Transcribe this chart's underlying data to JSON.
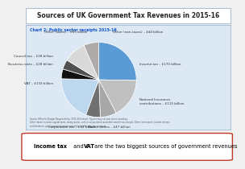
{
  "title": "Sources of UK Government Tax Revenues in 2015-16",
  "chart_title": "Chart 2: Public sector receipts 2015-16",
  "slices": [
    {
      "label": "Income tax – £170 billion",
      "value": 170,
      "color": "#5b9bd5"
    },
    {
      "label": "National Insurance\ncontributions – £115 billion",
      "value": 115,
      "color": "#c0c0c0"
    },
    {
      "label": "Excise duties – £47 billion",
      "value": 47,
      "color": "#a8a8a8"
    },
    {
      "label": "Corporation tax – £42 billion",
      "value": 42,
      "color": "#707070"
    },
    {
      "label": "VAT – £133 billion",
      "value": 133,
      "color": "#bdd7ee"
    },
    {
      "label": "Business rates – £28 billion",
      "value": 28,
      "color": "#111111"
    },
    {
      "label": "Council tax – £28 billion",
      "value": 28,
      "color": "#505050"
    },
    {
      "label": "Other (taxes) – £65 billion",
      "value": 65,
      "color": "#d9d9d9"
    },
    {
      "label": "Other (non-taxes) – £44 billion",
      "value": 44,
      "color": "#aeaaaa"
    }
  ],
  "bg_color": "#f0f0f0",
  "inner_bg": "#dce9f5",
  "title_bg": "#ffffff",
  "title_border": "#b0c0d0",
  "title_color": "#222222",
  "box_border": "#c0392b",
  "source_text": "Source: Office for Budget Responsibility, 2015-16 forecast. Figures may not sum due to rounding.\nOther (taxes) includes capital taxes, stamp duties, vehicle excise duties and other smaller tax receipts. Other (non-taxes) includes interest\nand dividends, gross operating surplus and other smaller non-tax revenues."
}
